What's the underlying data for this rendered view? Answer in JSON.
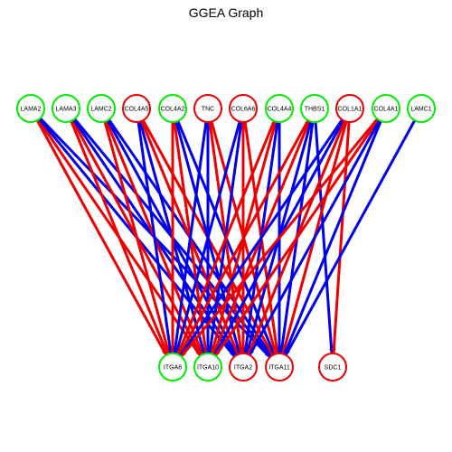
{
  "title": "GGEA Graph",
  "colors": {
    "green": "#00ee00",
    "red": "#ee0000",
    "blue": "#0000ee"
  },
  "sources": [
    {
      "id": "LAMA2",
      "label": "LAMA2",
      "color": "green"
    },
    {
      "id": "LAMA3",
      "label": "LAMA3",
      "color": "green"
    },
    {
      "id": "LAMC2",
      "label": "LAMC2",
      "color": "green"
    },
    {
      "id": "COL4A5",
      "label": "COL4A5",
      "color": "red"
    },
    {
      "id": "COL4A2",
      "label": "COL4A2",
      "color": "green"
    },
    {
      "id": "TNC",
      "label": "TNC",
      "color": "red"
    },
    {
      "id": "COL6A6",
      "label": "COL6A6",
      "color": "red"
    },
    {
      "id": "COL4A4",
      "label": "COL4A4",
      "color": "green"
    },
    {
      "id": "THBS1",
      "label": "THBS1",
      "color": "green"
    },
    {
      "id": "COL1A1",
      "label": "COL1A1",
      "color": "red"
    },
    {
      "id": "COL4A1",
      "label": "COL4A1",
      "color": "green"
    },
    {
      "id": "LAMC1",
      "label": "LAMC1",
      "color": "green"
    }
  ],
  "targets": [
    {
      "id": "ITGA8",
      "label": "ITGA8",
      "color": "green"
    },
    {
      "id": "ITGA10",
      "label": "ITGA10",
      "color": "green"
    },
    {
      "id": "ITGA2",
      "label": "ITGA2",
      "color": "red"
    },
    {
      "id": "ITGA11",
      "label": "ITGA11",
      "color": "red"
    },
    {
      "id": "SDC1",
      "label": "SDC1",
      "color": "red"
    }
  ],
  "edges": [
    {
      "from": "LAMA2",
      "to": "ITGA8",
      "color": "red"
    },
    {
      "from": "LAMA2",
      "to": "ITGA10",
      "color": "red"
    },
    {
      "from": "LAMA2",
      "to": "ITGA2",
      "color": "blue"
    },
    {
      "from": "LAMA2",
      "to": "ITGA11",
      "color": "blue"
    },
    {
      "from": "LAMA3",
      "to": "ITGA8",
      "color": "red"
    },
    {
      "from": "LAMA3",
      "to": "ITGA10",
      "color": "red"
    },
    {
      "from": "LAMA3",
      "to": "ITGA2",
      "color": "blue"
    },
    {
      "from": "LAMA3",
      "to": "ITGA11",
      "color": "blue"
    },
    {
      "from": "LAMC2",
      "to": "ITGA8",
      "color": "red"
    },
    {
      "from": "LAMC2",
      "to": "ITGA10",
      "color": "red"
    },
    {
      "from": "LAMC2",
      "to": "ITGA2",
      "color": "blue"
    },
    {
      "from": "LAMC2",
      "to": "ITGA11",
      "color": "blue"
    },
    {
      "from": "COL4A5",
      "to": "ITGA8",
      "color": "blue"
    },
    {
      "from": "COL4A5",
      "to": "ITGA10",
      "color": "blue"
    },
    {
      "from": "COL4A5",
      "to": "ITGA2",
      "color": "red"
    },
    {
      "from": "COL4A5",
      "to": "ITGA11",
      "color": "red"
    },
    {
      "from": "COL4A2",
      "to": "ITGA8",
      "color": "red"
    },
    {
      "from": "COL4A2",
      "to": "ITGA10",
      "color": "red"
    },
    {
      "from": "COL4A2",
      "to": "ITGA2",
      "color": "blue"
    },
    {
      "from": "COL4A2",
      "to": "ITGA11",
      "color": "blue"
    },
    {
      "from": "TNC",
      "to": "ITGA8",
      "color": "blue"
    },
    {
      "from": "TNC",
      "to": "ITGA10",
      "color": "blue"
    },
    {
      "from": "TNC",
      "to": "ITGA2",
      "color": "red"
    },
    {
      "from": "TNC",
      "to": "ITGA11",
      "color": "red"
    },
    {
      "from": "COL6A6",
      "to": "ITGA8",
      "color": "blue"
    },
    {
      "from": "COL6A6",
      "to": "ITGA10",
      "color": "blue"
    },
    {
      "from": "COL6A6",
      "to": "ITGA2",
      "color": "red"
    },
    {
      "from": "COL6A6",
      "to": "ITGA11",
      "color": "red"
    },
    {
      "from": "COL4A4",
      "to": "ITGA8",
      "color": "red"
    },
    {
      "from": "COL4A4",
      "to": "ITGA10",
      "color": "red"
    },
    {
      "from": "COL4A4",
      "to": "ITGA2",
      "color": "blue"
    },
    {
      "from": "COL4A4",
      "to": "ITGA11",
      "color": "blue"
    },
    {
      "from": "THBS1",
      "to": "ITGA8",
      "color": "red"
    },
    {
      "from": "THBS1",
      "to": "ITGA10",
      "color": "red"
    },
    {
      "from": "THBS1",
      "to": "ITGA2",
      "color": "blue"
    },
    {
      "from": "THBS1",
      "to": "ITGA11",
      "color": "blue"
    },
    {
      "from": "THBS1",
      "to": "SDC1",
      "color": "blue"
    },
    {
      "from": "COL1A1",
      "to": "ITGA8",
      "color": "blue"
    },
    {
      "from": "COL1A1",
      "to": "ITGA10",
      "color": "blue"
    },
    {
      "from": "COL1A1",
      "to": "ITGA2",
      "color": "red"
    },
    {
      "from": "COL1A1",
      "to": "ITGA11",
      "color": "red"
    },
    {
      "from": "COL1A1",
      "to": "SDC1",
      "color": "red"
    },
    {
      "from": "COL4A1",
      "to": "ITGA8",
      "color": "red"
    },
    {
      "from": "COL4A1",
      "to": "ITGA10",
      "color": "red"
    },
    {
      "from": "COL4A1",
      "to": "ITGA2",
      "color": "blue"
    },
    {
      "from": "COL4A1",
      "to": "ITGA11",
      "color": "blue"
    },
    {
      "from": "LAMC1",
      "to": "ITGA11",
      "color": "blue"
    }
  ]
}
